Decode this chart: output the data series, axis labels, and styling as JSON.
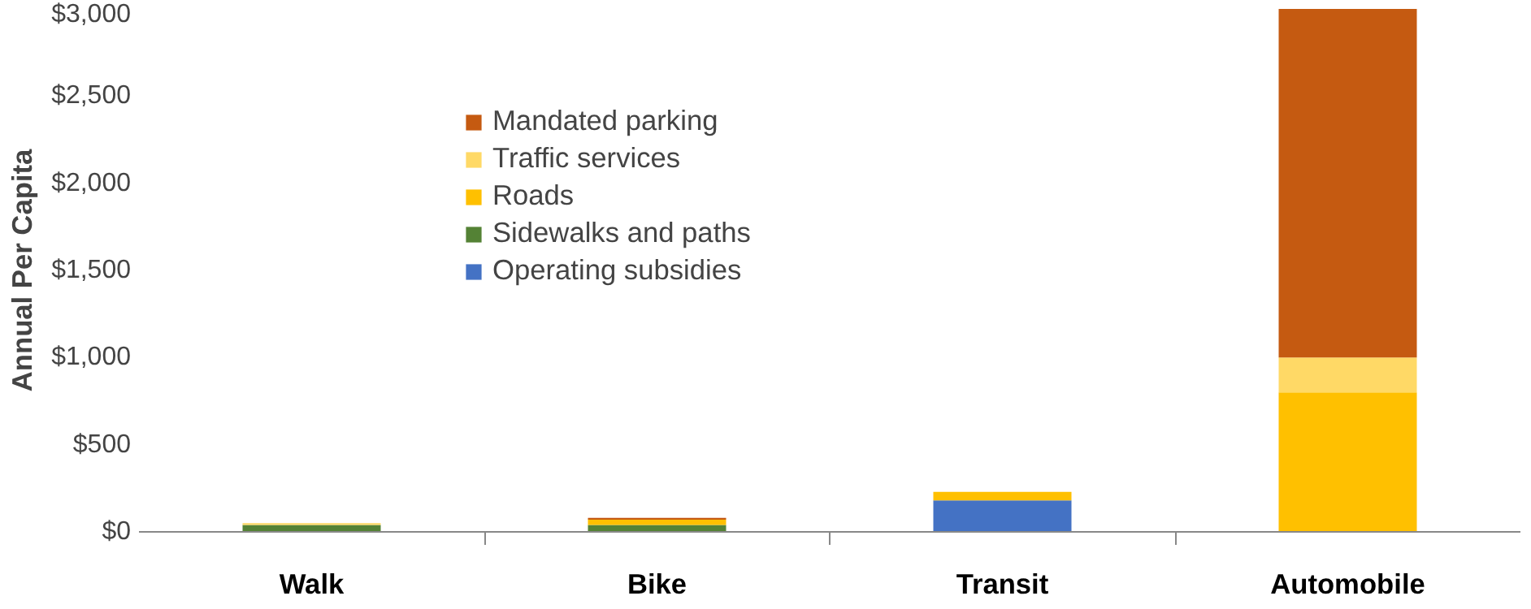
{
  "chart_data": {
    "type": "bar",
    "stacked": true,
    "ylabel": "Annual Per Capita",
    "categories": [
      "Walk",
      "Bike",
      "Transit",
      "Automobile"
    ],
    "series": [
      {
        "name": "Operating subsidies",
        "color": "#4472c4",
        "values": [
          0,
          0,
          180,
          0
        ]
      },
      {
        "name": "Sidewalks and paths",
        "color": "#548235",
        "values": [
          40,
          40,
          0,
          0
        ]
      },
      {
        "name": "Roads",
        "color": "#ffc000",
        "values": [
          0,
          30,
          50,
          800
        ]
      },
      {
        "name": "Traffic services",
        "color": "#ffd966",
        "values": [
          10,
          0,
          0,
          200
        ]
      },
      {
        "name": "Mandated parking",
        "color": "#c55a11",
        "values": [
          0,
          10,
          0,
          2000
        ]
      }
    ],
    "ylim": [
      0,
      3000
    ],
    "yticks": [
      {
        "value": 0,
        "label": "$0"
      },
      {
        "value": 500,
        "label": "$500"
      },
      {
        "value": 1000,
        "label": "$1,000"
      },
      {
        "value": 1500,
        "label": "$1,500"
      },
      {
        "value": 2000,
        "label": "$2,000"
      },
      {
        "value": 2500,
        "label": "$2,500"
      },
      {
        "value": 3000,
        "label": "$3,000"
      }
    ],
    "grid": false,
    "legend": "top left"
  }
}
